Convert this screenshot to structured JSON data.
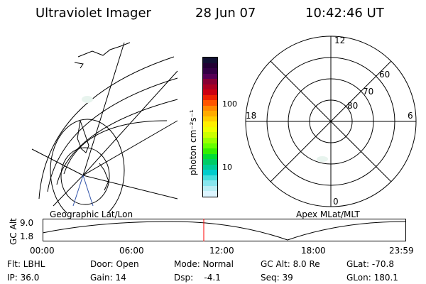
{
  "header": {
    "instrument": "Ultraviolet Imager",
    "date": "28 Jun 07",
    "time": "10:42:46 UT"
  },
  "colorbar": {
    "unit_label": "photon cm⁻²s⁻¹",
    "ticks": [
      "100",
      "10"
    ],
    "colors": [
      "#111133",
      "#220033",
      "#330044",
      "#550055",
      "#880033",
      "#aa0022",
      "#cc0011",
      "#ee2200",
      "#ff5500",
      "#ff8800",
      "#ffaa00",
      "#ffcc00",
      "#ffee00",
      "#eeff00",
      "#ccff00",
      "#99ff00",
      "#66ff00",
      "#33ee00",
      "#00dd33",
      "#00cc66",
      "#00cc99",
      "#00cccc",
      "#44dddd",
      "#88e6ee",
      "#bbeef5",
      "#ddf5ff"
    ]
  },
  "left_map": {
    "label": "Geographic Lat/Lon"
  },
  "right_map": {
    "label": "Apex MLat/MLT",
    "mlt_labels": {
      "top": "12",
      "bottom": "0",
      "left": "18",
      "right": "6"
    },
    "lat_labels": [
      "60",
      "70",
      "80"
    ]
  },
  "altitude_plot": {
    "ylabel": "GC Alt",
    "yticks": [
      "9.0",
      "1.8"
    ],
    "xticks": [
      "00:00",
      "06:00",
      "12:00",
      "18:00",
      "23:59"
    ],
    "marker_color": "#ff0000"
  },
  "footer": {
    "row1": {
      "flt": "Flt: LBHL",
      "door": "Door: Open",
      "mode": "Mode: Normal",
      "gcalt": "GC Alt: 8.0 Re",
      "glat": "GLat: -70.8"
    },
    "row2": {
      "ip": "IP: 36.0",
      "gain": "Gain: 14",
      "dsp": "Dsp:    -4.1",
      "seq": "Seq: 39",
      "glon": "GLon: 180.1"
    }
  }
}
